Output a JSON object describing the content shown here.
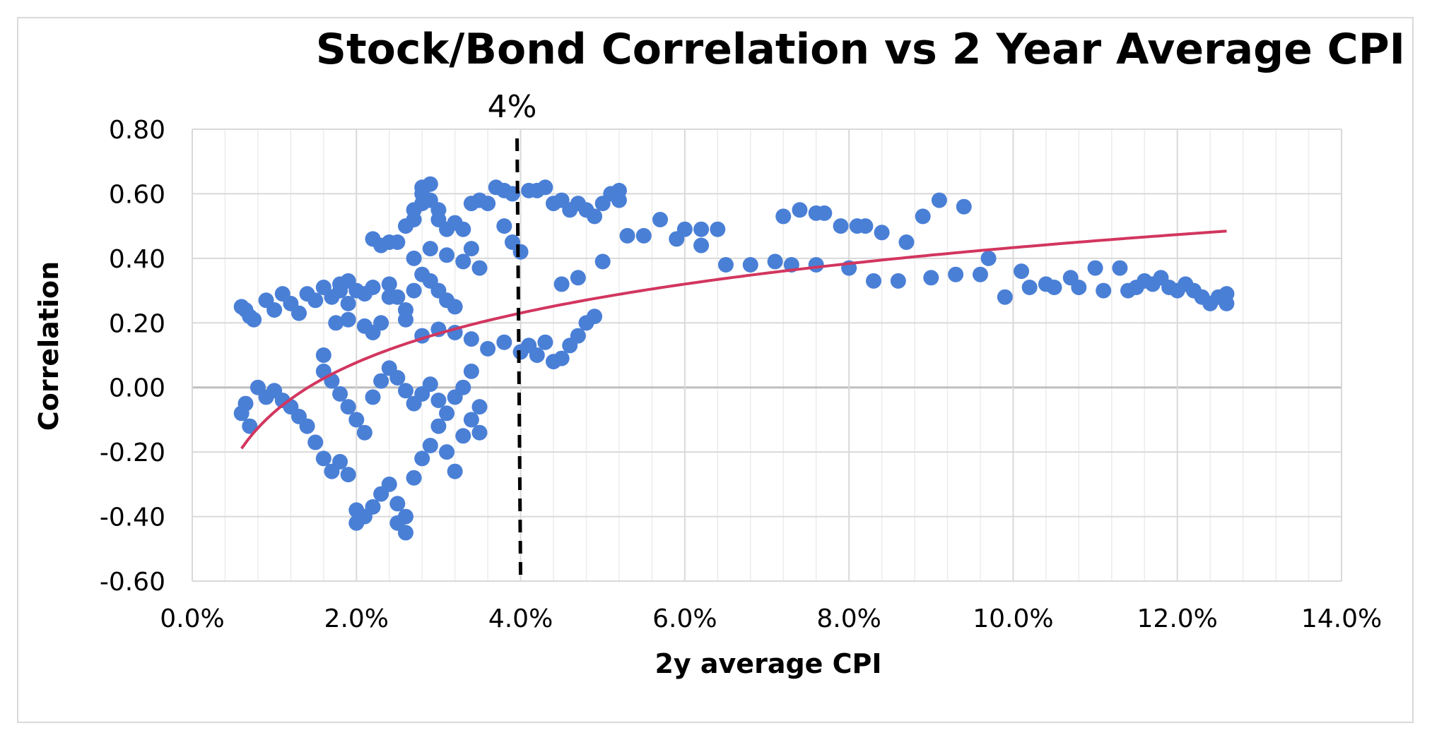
{
  "chart_data": {
    "type": "scatter",
    "title": "Stock/Bond Correlation vs 2 Year Average CPI",
    "xlabel": "2y average CPI",
    "ylabel": "Correlation",
    "xlim": [
      0,
      0.14
    ],
    "ylim": [
      -0.6,
      0.8
    ],
    "x_ticks": [
      0,
      0.02,
      0.04,
      0.06,
      0.08,
      0.1,
      0.12,
      0.14
    ],
    "x_tick_labels": [
      "0.0%",
      "2.0%",
      "4.0%",
      "6.0%",
      "8.0%",
      "10.0%",
      "12.0%",
      "14.0%"
    ],
    "y_ticks": [
      0.8,
      0.6,
      0.4,
      0.2,
      0.0,
      -0.2,
      -0.4,
      -0.6
    ],
    "y_tick_labels": [
      "0.80",
      "0.60",
      "0.40",
      "0.20",
      "0.00",
      "-0.20",
      "-0.40",
      "-0.60"
    ],
    "grid": true,
    "colors": {
      "points": "#4a7fd6",
      "trendline": "#d2365f",
      "annotation_line": "#000000",
      "grid": "#d9d9d9"
    },
    "annotation": {
      "label": "4%",
      "x": 0.04,
      "style": "dashed-vertical"
    },
    "trendline": {
      "type": "logarithmic",
      "x_start": 0.006,
      "x_end": 0.126,
      "coef_a": 0.2212,
      "coef_b": 0.9425
    },
    "series": [
      {
        "points": [
          [
            0.006,
            0.25
          ],
          [
            0.007,
            0.22
          ],
          [
            0.0065,
            0.24
          ],
          [
            0.0075,
            0.21
          ],
          [
            0.009,
            0.27
          ],
          [
            0.01,
            0.24
          ],
          [
            0.011,
            0.29
          ],
          [
            0.012,
            0.26
          ],
          [
            0.013,
            0.23
          ],
          [
            0.014,
            0.29
          ],
          [
            0.015,
            0.27
          ],
          [
            0.016,
            0.31
          ],
          [
            0.017,
            0.28
          ],
          [
            0.018,
            0.3
          ],
          [
            0.019,
            0.26
          ],
          [
            0.02,
            0.3
          ],
          [
            0.021,
            0.29
          ],
          [
            0.022,
            0.31
          ],
          [
            0.019,
            0.33
          ],
          [
            0.018,
            0.32
          ],
          [
            0.0175,
            0.2
          ],
          [
            0.019,
            0.21
          ],
          [
            0.021,
            0.19
          ],
          [
            0.022,
            0.17
          ],
          [
            0.023,
            0.2
          ],
          [
            0.024,
            0.28
          ],
          [
            0.026,
            0.21
          ],
          [
            0.028,
            0.16
          ],
          [
            0.03,
            0.18
          ],
          [
            0.032,
            0.17
          ],
          [
            0.034,
            0.15
          ],
          [
            0.036,
            0.12
          ],
          [
            0.038,
            0.14
          ],
          [
            0.04,
            0.11
          ],
          [
            0.041,
            0.13
          ],
          [
            0.042,
            0.1
          ],
          [
            0.043,
            0.14
          ],
          [
            0.044,
            0.08
          ],
          [
            0.045,
            0.09
          ],
          [
            0.046,
            0.13
          ],
          [
            0.047,
            0.16
          ],
          [
            0.048,
            0.2
          ],
          [
            0.049,
            0.22
          ],
          [
            0.045,
            0.32
          ],
          [
            0.047,
            0.34
          ],
          [
            0.05,
            0.39
          ],
          [
            0.006,
            -0.08
          ],
          [
            0.007,
            -0.12
          ],
          [
            0.0065,
            -0.05
          ],
          [
            0.008,
            0.0
          ],
          [
            0.009,
            -0.03
          ],
          [
            0.01,
            -0.01
          ],
          [
            0.011,
            -0.04
          ],
          [
            0.012,
            -0.06
          ],
          [
            0.013,
            -0.09
          ],
          [
            0.014,
            -0.12
          ],
          [
            0.015,
            -0.17
          ],
          [
            0.016,
            -0.22
          ],
          [
            0.017,
            -0.26
          ],
          [
            0.018,
            -0.23
          ],
          [
            0.019,
            -0.27
          ],
          [
            0.02,
            -0.38
          ],
          [
            0.02,
            -0.42
          ],
          [
            0.021,
            -0.4
          ],
          [
            0.022,
            -0.37
          ],
          [
            0.023,
            -0.33
          ],
          [
            0.024,
            -0.3
          ],
          [
            0.025,
            -0.36
          ],
          [
            0.025,
            -0.42
          ],
          [
            0.026,
            -0.45
          ],
          [
            0.026,
            -0.4
          ],
          [
            0.027,
            -0.28
          ],
          [
            0.028,
            -0.22
          ],
          [
            0.029,
            -0.18
          ],
          [
            0.03,
            -0.12
          ],
          [
            0.031,
            -0.2
          ],
          [
            0.032,
            -0.26
          ],
          [
            0.033,
            -0.15
          ],
          [
            0.034,
            -0.1
          ],
          [
            0.035,
            -0.06
          ],
          [
            0.035,
            -0.14
          ],
          [
            0.016,
            0.05
          ],
          [
            0.017,
            0.02
          ],
          [
            0.018,
            -0.02
          ],
          [
            0.019,
            -0.06
          ],
          [
            0.02,
            -0.1
          ],
          [
            0.021,
            -0.14
          ],
          [
            0.022,
            -0.03
          ],
          [
            0.023,
            0.02
          ],
          [
            0.024,
            0.06
          ],
          [
            0.025,
            0.03
          ],
          [
            0.026,
            -0.01
          ],
          [
            0.027,
            -0.05
          ],
          [
            0.028,
            -0.02
          ],
          [
            0.029,
            0.01
          ],
          [
            0.03,
            -0.04
          ],
          [
            0.031,
            -0.08
          ],
          [
            0.032,
            -0.03
          ],
          [
            0.033,
            0.0
          ],
          [
            0.034,
            0.05
          ],
          [
            0.016,
            0.1
          ],
          [
            0.024,
            0.32
          ],
          [
            0.025,
            0.28
          ],
          [
            0.026,
            0.24
          ],
          [
            0.027,
            0.3
          ],
          [
            0.028,
            0.35
          ],
          [
            0.029,
            0.33
          ],
          [
            0.03,
            0.3
          ],
          [
            0.031,
            0.27
          ],
          [
            0.032,
            0.25
          ],
          [
            0.027,
            0.4
          ],
          [
            0.029,
            0.43
          ],
          [
            0.031,
            0.41
          ],
          [
            0.033,
            0.39
          ],
          [
            0.034,
            0.43
          ],
          [
            0.035,
            0.37
          ],
          [
            0.022,
            0.46
          ],
          [
            0.023,
            0.44
          ],
          [
            0.024,
            0.45
          ],
          [
            0.025,
            0.45
          ],
          [
            0.026,
            0.5
          ],
          [
            0.027,
            0.52
          ],
          [
            0.027,
            0.55
          ],
          [
            0.028,
            0.57
          ],
          [
            0.028,
            0.6
          ],
          [
            0.028,
            0.62
          ],
          [
            0.029,
            0.63
          ],
          [
            0.029,
            0.58
          ],
          [
            0.03,
            0.55
          ],
          [
            0.03,
            0.52
          ],
          [
            0.031,
            0.49
          ],
          [
            0.032,
            0.51
          ],
          [
            0.033,
            0.49
          ],
          [
            0.034,
            0.57
          ],
          [
            0.035,
            0.58
          ],
          [
            0.036,
            0.57
          ],
          [
            0.037,
            0.62
          ],
          [
            0.038,
            0.61
          ],
          [
            0.039,
            0.6
          ],
          [
            0.038,
            0.5
          ],
          [
            0.039,
            0.45
          ],
          [
            0.04,
            0.42
          ],
          [
            0.041,
            0.61
          ],
          [
            0.042,
            0.61
          ],
          [
            0.043,
            0.62
          ],
          [
            0.044,
            0.57
          ],
          [
            0.045,
            0.58
          ],
          [
            0.046,
            0.55
          ],
          [
            0.047,
            0.57
          ],
          [
            0.048,
            0.55
          ],
          [
            0.049,
            0.53
          ],
          [
            0.05,
            0.57
          ],
          [
            0.051,
            0.6
          ],
          [
            0.052,
            0.61
          ],
          [
            0.052,
            0.58
          ],
          [
            0.053,
            0.47
          ],
          [
            0.055,
            0.47
          ],
          [
            0.057,
            0.52
          ],
          [
            0.059,
            0.46
          ],
          [
            0.06,
            0.49
          ],
          [
            0.062,
            0.44
          ],
          [
            0.062,
            0.49
          ],
          [
            0.064,
            0.49
          ],
          [
            0.065,
            0.38
          ],
          [
            0.068,
            0.38
          ],
          [
            0.071,
            0.39
          ],
          [
            0.073,
            0.38
          ],
          [
            0.072,
            0.53
          ],
          [
            0.074,
            0.55
          ],
          [
            0.076,
            0.54
          ],
          [
            0.077,
            0.54
          ],
          [
            0.076,
            0.38
          ],
          [
            0.079,
            0.5
          ],
          [
            0.08,
            0.37
          ],
          [
            0.081,
            0.5
          ],
          [
            0.082,
            0.5
          ],
          [
            0.084,
            0.48
          ],
          [
            0.083,
            0.33
          ],
          [
            0.086,
            0.33
          ],
          [
            0.087,
            0.45
          ],
          [
            0.089,
            0.53
          ],
          [
            0.09,
            0.34
          ],
          [
            0.091,
            0.58
          ],
          [
            0.093,
            0.35
          ],
          [
            0.094,
            0.56
          ],
          [
            0.096,
            0.35
          ],
          [
            0.097,
            0.4
          ],
          [
            0.099,
            0.28
          ],
          [
            0.101,
            0.36
          ],
          [
            0.102,
            0.31
          ],
          [
            0.104,
            0.32
          ],
          [
            0.105,
            0.31
          ],
          [
            0.107,
            0.34
          ],
          [
            0.108,
            0.31
          ],
          [
            0.11,
            0.37
          ],
          [
            0.111,
            0.3
          ],
          [
            0.113,
            0.37
          ],
          [
            0.114,
            0.3
          ],
          [
            0.115,
            0.31
          ],
          [
            0.116,
            0.33
          ],
          [
            0.117,
            0.32
          ],
          [
            0.118,
            0.34
          ],
          [
            0.119,
            0.31
          ],
          [
            0.12,
            0.3
          ],
          [
            0.121,
            0.32
          ],
          [
            0.122,
            0.3
          ],
          [
            0.123,
            0.28
          ],
          [
            0.124,
            0.26
          ],
          [
            0.125,
            0.28
          ],
          [
            0.126,
            0.26
          ],
          [
            0.126,
            0.29
          ]
        ]
      }
    ]
  }
}
